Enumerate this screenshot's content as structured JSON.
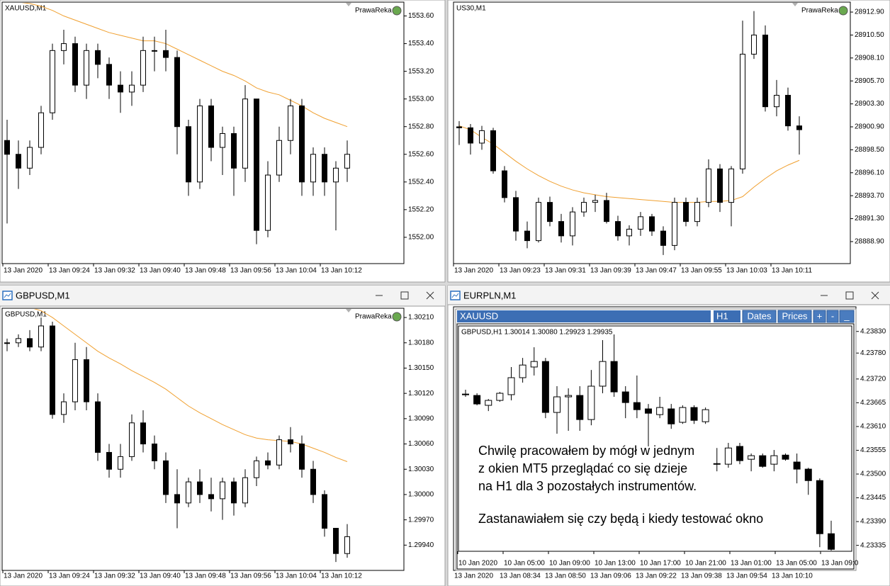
{
  "candle_style": {
    "bull": "#ffffff",
    "bear": "#000000",
    "outline": "#000000"
  },
  "windows": [
    {
      "symbol_label": "XAUUSD,M1",
      "watermark": "PrawaReka",
      "ma_color": "#f0a030",
      "ylim": [
        1551.81,
        1553.7
      ],
      "yticks": [
        {
          "value": 1553.6,
          "label": "1553.60"
        },
        {
          "value": 1553.4,
          "label": "1553.40"
        },
        {
          "value": 1553.2,
          "label": "1553.20"
        },
        {
          "value": 1553.0,
          "label": "1553.00"
        },
        {
          "value": 1552.8,
          "label": "1552.80"
        },
        {
          "value": 1552.6,
          "label": "1552.60"
        },
        {
          "value": 1552.4,
          "label": "1552.40"
        },
        {
          "value": 1552.2,
          "label": "1552.20"
        },
        {
          "value": 1552.0,
          "label": "1552.00"
        }
      ],
      "xticks": [
        "13 Jan 2020",
        "13 Jan 09:24",
        "13 Jan 09:32",
        "13 Jan 09:40",
        "13 Jan 09:48",
        "13 Jan 09:56",
        "13 Jan 10:04",
        "13 Jan 10:12"
      ],
      "candles": [
        [
          1552.7,
          1552.85,
          1552.1,
          1552.6
        ],
        [
          1552.6,
          1552.7,
          1552.35,
          1552.5
        ],
        [
          1552.5,
          1552.7,
          1552.45,
          1552.65
        ],
        [
          1552.65,
          1552.95,
          1552.6,
          1552.9
        ],
        [
          1552.9,
          1553.4,
          1552.85,
          1553.35
        ],
        [
          1553.35,
          1553.5,
          1553.25,
          1553.4
        ],
        [
          1553.4,
          1553.45,
          1553.05,
          1553.1
        ],
        [
          1553.1,
          1553.4,
          1553.0,
          1553.35
        ],
        [
          1553.35,
          1553.4,
          1553.15,
          1553.25
        ],
        [
          1553.25,
          1553.3,
          1553.0,
          1553.1
        ],
        [
          1553.1,
          1553.2,
          1552.9,
          1553.05
        ],
        [
          1553.05,
          1553.2,
          1552.95,
          1553.1
        ],
        [
          1553.1,
          1553.45,
          1553.05,
          1553.35
        ],
        [
          1553.35,
          1553.45,
          1553.2,
          1553.35
        ],
        [
          1553.35,
          1553.5,
          1553.2,
          1553.3
        ],
        [
          1553.3,
          1553.35,
          1552.6,
          1552.8
        ],
        [
          1552.8,
          1552.85,
          1552.3,
          1552.4
        ],
        [
          1552.4,
          1553.0,
          1552.35,
          1552.95
        ],
        [
          1552.95,
          1553.0,
          1552.55,
          1552.65
        ],
        [
          1552.65,
          1552.8,
          1552.45,
          1552.75
        ],
        [
          1552.75,
          1552.8,
          1552.3,
          1552.5
        ],
        [
          1552.5,
          1553.1,
          1552.4,
          1553.0
        ],
        [
          1553.0,
          1553.0,
          1551.95,
          1552.05
        ],
        [
          1552.05,
          1552.55,
          1552.0,
          1552.45
        ],
        [
          1552.45,
          1552.8,
          1552.4,
          1552.7
        ],
        [
          1552.7,
          1553.0,
          1552.6,
          1552.95
        ],
        [
          1552.95,
          1553.0,
          1552.3,
          1552.4
        ],
        [
          1552.4,
          1552.65,
          1552.3,
          1552.6
        ],
        [
          1552.6,
          1552.65,
          1552.3,
          1552.4
        ],
        [
          1552.4,
          1552.55,
          1552.05,
          1552.5
        ],
        [
          1552.5,
          1552.7,
          1552.4,
          1552.6
        ]
      ],
      "ma": [
        1553.72,
        1553.7,
        1553.69,
        1553.67,
        1553.64,
        1553.6,
        1553.57,
        1553.54,
        1553.51,
        1553.48,
        1553.46,
        1553.44,
        1553.42,
        1553.42,
        1553.4,
        1553.36,
        1553.32,
        1553.28,
        1553.24,
        1553.2,
        1553.17,
        1553.13,
        1553.08,
        1553.05,
        1553.03,
        1552.99,
        1552.95,
        1552.9,
        1552.86,
        1552.83,
        1552.8
      ]
    },
    {
      "symbol_label": "US30,M1",
      "watermark": "PrawaReka",
      "ma_color": "#f0a030",
      "ylim": [
        28886.6,
        28913.94
      ],
      "yticks": [
        {
          "value": 28912.9,
          "label": "28912.90"
        },
        {
          "value": 28910.5,
          "label": "28910.50"
        },
        {
          "value": 28908.1,
          "label": "28908.10"
        },
        {
          "value": 28905.7,
          "label": "28905.70"
        },
        {
          "value": 28903.3,
          "label": "28903.30"
        },
        {
          "value": 28900.9,
          "label": "28900.90"
        },
        {
          "value": 28898.5,
          "label": "28898.50"
        },
        {
          "value": 28896.1,
          "label": "28896.10"
        },
        {
          "value": 28893.7,
          "label": "28893.70"
        },
        {
          "value": 28891.3,
          "label": "28891.30"
        },
        {
          "value": 28888.9,
          "label": "28888.90"
        }
      ],
      "xticks": [
        "13 Jan 2020",
        "13 Jan 09:23",
        "13 Jan 09:31",
        "13 Jan 09:39",
        "13 Jan 09:47",
        "13 Jan 09:55",
        "13 Jan 10:03",
        "13 Jan 10:11"
      ],
      "candles": [
        [
          28900.9,
          28901.5,
          28899.0,
          28900.8
        ],
        [
          28900.8,
          28901.2,
          28898.0,
          28899.2
        ],
        [
          28899.2,
          28901.0,
          28898.5,
          28900.5
        ],
        [
          28900.5,
          28900.8,
          28896.0,
          28896.3
        ],
        [
          28896.3,
          28896.8,
          28893.0,
          28893.5
        ],
        [
          28893.5,
          28894.2,
          28889.0,
          28890.0
        ],
        [
          28890.0,
          28891.0,
          28888.2,
          28889.0
        ],
        [
          28889.0,
          28893.5,
          28888.8,
          28893.0
        ],
        [
          28893.0,
          28893.6,
          28890.5,
          28891.0
        ],
        [
          28891.0,
          28891.8,
          28888.8,
          28889.5
        ],
        [
          28889.5,
          28892.5,
          28888.5,
          28892.0
        ],
        [
          28892.0,
          28893.5,
          28891.5,
          28893.0
        ],
        [
          28893.0,
          28893.8,
          28892.0,
          28893.2
        ],
        [
          28893.2,
          28894.0,
          28890.8,
          28891.0
        ],
        [
          28891.0,
          28891.6,
          28889.0,
          28889.5
        ],
        [
          28889.5,
          28890.6,
          28888.5,
          28890.2
        ],
        [
          28890.2,
          28892.0,
          28889.5,
          28891.5
        ],
        [
          28891.5,
          28891.8,
          28889.5,
          28890.0
        ],
        [
          28890.0,
          28890.5,
          28887.5,
          28888.5
        ],
        [
          28888.5,
          28893.5,
          28888.0,
          28893.0
        ],
        [
          28893.0,
          28893.5,
          28890.5,
          28891.0
        ],
        [
          28891.0,
          28893.5,
          28890.5,
          28893.0
        ],
        [
          28893.0,
          28897.5,
          28892.5,
          28896.5
        ],
        [
          28896.5,
          28897.0,
          28892.0,
          28893.0
        ],
        [
          28893.0,
          28896.8,
          28890.5,
          28896.5
        ],
        [
          28896.5,
          28912.0,
          28896.0,
          28908.5
        ],
        [
          28908.5,
          28913.0,
          28908.0,
          28910.5
        ],
        [
          28910.5,
          28911.5,
          28902.5,
          28903.0
        ],
        [
          28903.0,
          28905.8,
          28902.0,
          28904.2
        ],
        [
          28904.2,
          28905.0,
          28900.5,
          28901.0
        ],
        [
          28901.0,
          28902.0,
          28898.0,
          28900.6
        ]
      ],
      "ma": [
        28901.0,
        28900.6,
        28899.8,
        28899.1,
        28898.2,
        28897.3,
        28896.5,
        28895.8,
        28895.2,
        28894.7,
        28894.3,
        28894.0,
        28893.8,
        28893.6,
        28893.5,
        28893.4,
        28893.3,
        28893.2,
        28893.1,
        28893.0,
        28893.0,
        28893.0,
        28893.1,
        28893.1,
        28893.2,
        28893.6,
        28894.6,
        28895.5,
        28896.3,
        28896.9,
        28897.4
      ]
    },
    {
      "title": "GBPUSD,M1",
      "symbol_label": "GBPUSD,M1",
      "watermark": "PrawaReka",
      "ma_color": "#f0a030",
      "ylim": [
        1.2991,
        1.30221
      ],
      "yticks": [
        {
          "value": 1.3021,
          "label": "1.30210"
        },
        {
          "value": 1.3018,
          "label": "1.30180"
        },
        {
          "value": 1.3015,
          "label": "1.30150"
        },
        {
          "value": 1.3012,
          "label": "1.30120"
        },
        {
          "value": 1.3009,
          "label": "1.30090"
        },
        {
          "value": 1.3006,
          "label": "1.30060"
        },
        {
          "value": 1.3003,
          "label": "1.30030"
        },
        {
          "value": 1.3,
          "label": "1.30000"
        },
        {
          "value": 1.2997,
          "label": "1.29970"
        },
        {
          "value": 1.2994,
          "label": "1.29940"
        }
      ],
      "xticks": [
        "13 Jan 2020",
        "13 Jan 09:24",
        "13 Jan 09:32",
        "13 Jan 09:40",
        "13 Jan 09:48",
        "13 Jan 09:56",
        "13 Jan 10:04",
        "13 Jan 10:12"
      ],
      "candles": [
        [
          1.3018,
          1.30185,
          1.3017,
          1.3018
        ],
        [
          1.3018,
          1.3019,
          1.30175,
          1.30185
        ],
        [
          1.30185,
          1.30195,
          1.3017,
          1.30175
        ],
        [
          1.30175,
          1.3021,
          1.3017,
          1.302
        ],
        [
          1.302,
          1.30205,
          1.3009,
          1.30095
        ],
        [
          1.30095,
          1.3012,
          1.30085,
          1.3011
        ],
        [
          1.3011,
          1.3018,
          1.301,
          1.3016
        ],
        [
          1.3016,
          1.30175,
          1.301,
          1.3011
        ],
        [
          1.3011,
          1.3012,
          1.3004,
          1.3005
        ],
        [
          1.3005,
          1.3006,
          1.3002,
          1.3003
        ],
        [
          1.3003,
          1.3006,
          1.3002,
          1.30045
        ],
        [
          1.30045,
          1.30095,
          1.3004,
          1.30085
        ],
        [
          1.30085,
          1.301,
          1.3005,
          1.3006
        ],
        [
          1.3006,
          1.3007,
          1.3003,
          1.3004
        ],
        [
          1.3004,
          1.3005,
          1.2999,
          1.3
        ],
        [
          1.3,
          1.3003,
          1.2996,
          1.2999
        ],
        [
          1.2999,
          1.3002,
          1.29985,
          1.30015
        ],
        [
          1.30015,
          1.3003,
          1.2999,
          1.3
        ],
        [
          1.3,
          1.3002,
          1.2998,
          1.29995
        ],
        [
          1.29995,
          1.3002,
          1.2997,
          1.30015
        ],
        [
          1.30015,
          1.3002,
          1.29975,
          1.2999
        ],
        [
          1.2999,
          1.3003,
          1.29985,
          1.3002
        ],
        [
          1.3002,
          1.30045,
          1.3001,
          1.3004
        ],
        [
          1.3004,
          1.3005,
          1.3003,
          1.30035
        ],
        [
          1.30035,
          1.3007,
          1.3003,
          1.30065
        ],
        [
          1.30065,
          1.3008,
          1.3005,
          1.3006
        ],
        [
          1.3006,
          1.3007,
          1.3002,
          1.3003
        ],
        [
          1.3003,
          1.3004,
          1.2999,
          1.3
        ],
        [
          1.3,
          1.30005,
          1.2995,
          1.2996
        ],
        [
          1.2996,
          1.2996,
          1.2992,
          1.2993
        ],
        [
          1.2993,
          1.29965,
          1.29925,
          1.2995
        ]
      ],
      "ma": [
        1.30225,
        1.30225,
        1.30222,
        1.30218,
        1.3021,
        1.302,
        1.3019,
        1.3018,
        1.3017,
        1.30162,
        1.30155,
        1.30147,
        1.3014,
        1.30133,
        1.30125,
        1.30115,
        1.30105,
        1.30097,
        1.3009,
        1.30083,
        1.30077,
        1.30071,
        1.30067,
        1.30065,
        1.30064,
        1.30063,
        1.3006,
        1.30055,
        1.3005,
        1.30044,
        1.30039
      ]
    },
    {
      "title": "EURPLN,M1",
      "ylim": [
        4.23277,
        4.23887
      ],
      "yticks": [
        {
          "value": 4.2383,
          "label": "4.23830"
        },
        {
          "value": 4.2378,
          "label": "4.23780"
        },
        {
          "value": 4.2372,
          "label": "4.23720"
        },
        {
          "value": 4.23665,
          "label": "4.23665"
        },
        {
          "value": 4.2361,
          "label": "4.23610"
        },
        {
          "value": 4.23555,
          "label": "4.23555"
        },
        {
          "value": 4.235,
          "label": "4.23500"
        },
        {
          "value": 4.23445,
          "label": "4.23445"
        },
        {
          "value": 4.2339,
          "label": "4.23390"
        },
        {
          "value": 4.23335,
          "label": "4.23335"
        }
      ],
      "xticks": [
        "13 Jan 2020",
        "13 Jan 08:34",
        "13 Jan 08:50",
        "13 Jan 09:06",
        "13 Jan 09:22",
        "13 Jan 09:38",
        "13 Jan 09:54",
        "13 Jan 10:10"
      ],
      "inset": {
        "toolbar": {
          "symbol": "XAUUSD",
          "timeframe": "H1",
          "buttons": [
            "Dates",
            "Prices",
            "+",
            "-",
            "_"
          ]
        },
        "symbol_label": "GBPUSD,H1  1.30014 1.30080 1.29923 1.29935",
        "ylim": [
          1.299,
          1.3103
        ],
        "xticks": [
          "10 Jan 2020",
          "10 Jan 05:00",
          "10 Jan 09:00",
          "10 Jan 13:00",
          "10 Jan 17:00",
          "10 Jan 21:00",
          "13 Jan 01:00",
          "13 Jan 05:00",
          "13 Jan 09:0"
        ],
        "candles": [
          [
            1.30721,
            1.30743,
            1.30707,
            1.30718
          ],
          [
            1.30714,
            1.30725,
            1.30664,
            1.30671
          ],
          [
            1.30664,
            1.30696,
            1.30635,
            1.30689
          ],
          [
            1.30689,
            1.30732,
            1.30682,
            1.30725
          ],
          [
            1.30718,
            1.30858,
            1.30689,
            1.30804
          ],
          [
            1.30804,
            1.30904,
            1.30779,
            1.30868
          ],
          [
            1.30858,
            1.30958,
            1.30815,
            1.30886
          ],
          [
            1.30886,
            1.30904,
            1.30599,
            1.30628
          ],
          [
            1.30628,
            1.30761,
            1.3052,
            1.30707
          ],
          [
            1.30707,
            1.3075,
            1.30535,
            1.30714
          ],
          [
            1.30714,
            1.30761,
            1.30535,
            1.30592
          ],
          [
            1.30592,
            1.30843,
            1.30563,
            1.30761
          ],
          [
            1.30761,
            1.30994,
            1.30725,
            1.30886
          ],
          [
            1.30886,
            1.31023,
            1.30707,
            1.30732
          ],
          [
            1.30732,
            1.30761,
            1.30599,
            1.30678
          ],
          [
            1.30678,
            1.30815,
            1.30599,
            1.30642
          ],
          [
            1.30646,
            1.30671,
            1.30456,
            1.30624
          ],
          [
            1.30617,
            1.30707,
            1.30599,
            1.30653
          ],
          [
            1.30646,
            1.30671,
            1.30545,
            1.3057
          ],
          [
            1.30578,
            1.30664,
            1.3057,
            1.30653
          ],
          [
            1.30653,
            1.30664,
            1.3057,
            1.30588
          ],
          [
            1.30581,
            1.30653,
            1.3057,
            1.30642
          ],
          [
            1.30366,
            1.30448,
            1.3033,
            1.30369
          ],
          [
            1.30366,
            1.30474,
            1.30348,
            1.30448
          ],
          [
            1.30456,
            1.30474,
            1.30366,
            1.30384
          ],
          [
            1.30391,
            1.3042,
            1.3033,
            1.30409
          ],
          [
            1.30409,
            1.3042,
            1.30348,
            1.30355
          ],
          [
            1.30366,
            1.30438,
            1.3033,
            1.30409
          ],
          [
            1.30412,
            1.3042,
            1.30384,
            1.30391
          ],
          [
            1.30377,
            1.3042,
            1.30269,
            1.30341
          ],
          [
            1.30341,
            1.30348,
            1.30211,
            1.30283
          ],
          [
            1.30283,
            1.30294,
            1.29946,
            1.30014
          ],
          [
            1.30014,
            1.3008,
            1.29923,
            1.29935
          ]
        ],
        "annotation": [
          "Chwilę pracowałem by mógł w jednym",
          "z okien MT5 przeglądać co się dzieje",
          "na H1 dla 3 pozostałych instrumentów.",
          "Zastanawiałem się czy będą i kiedy testować okno"
        ]
      }
    }
  ]
}
